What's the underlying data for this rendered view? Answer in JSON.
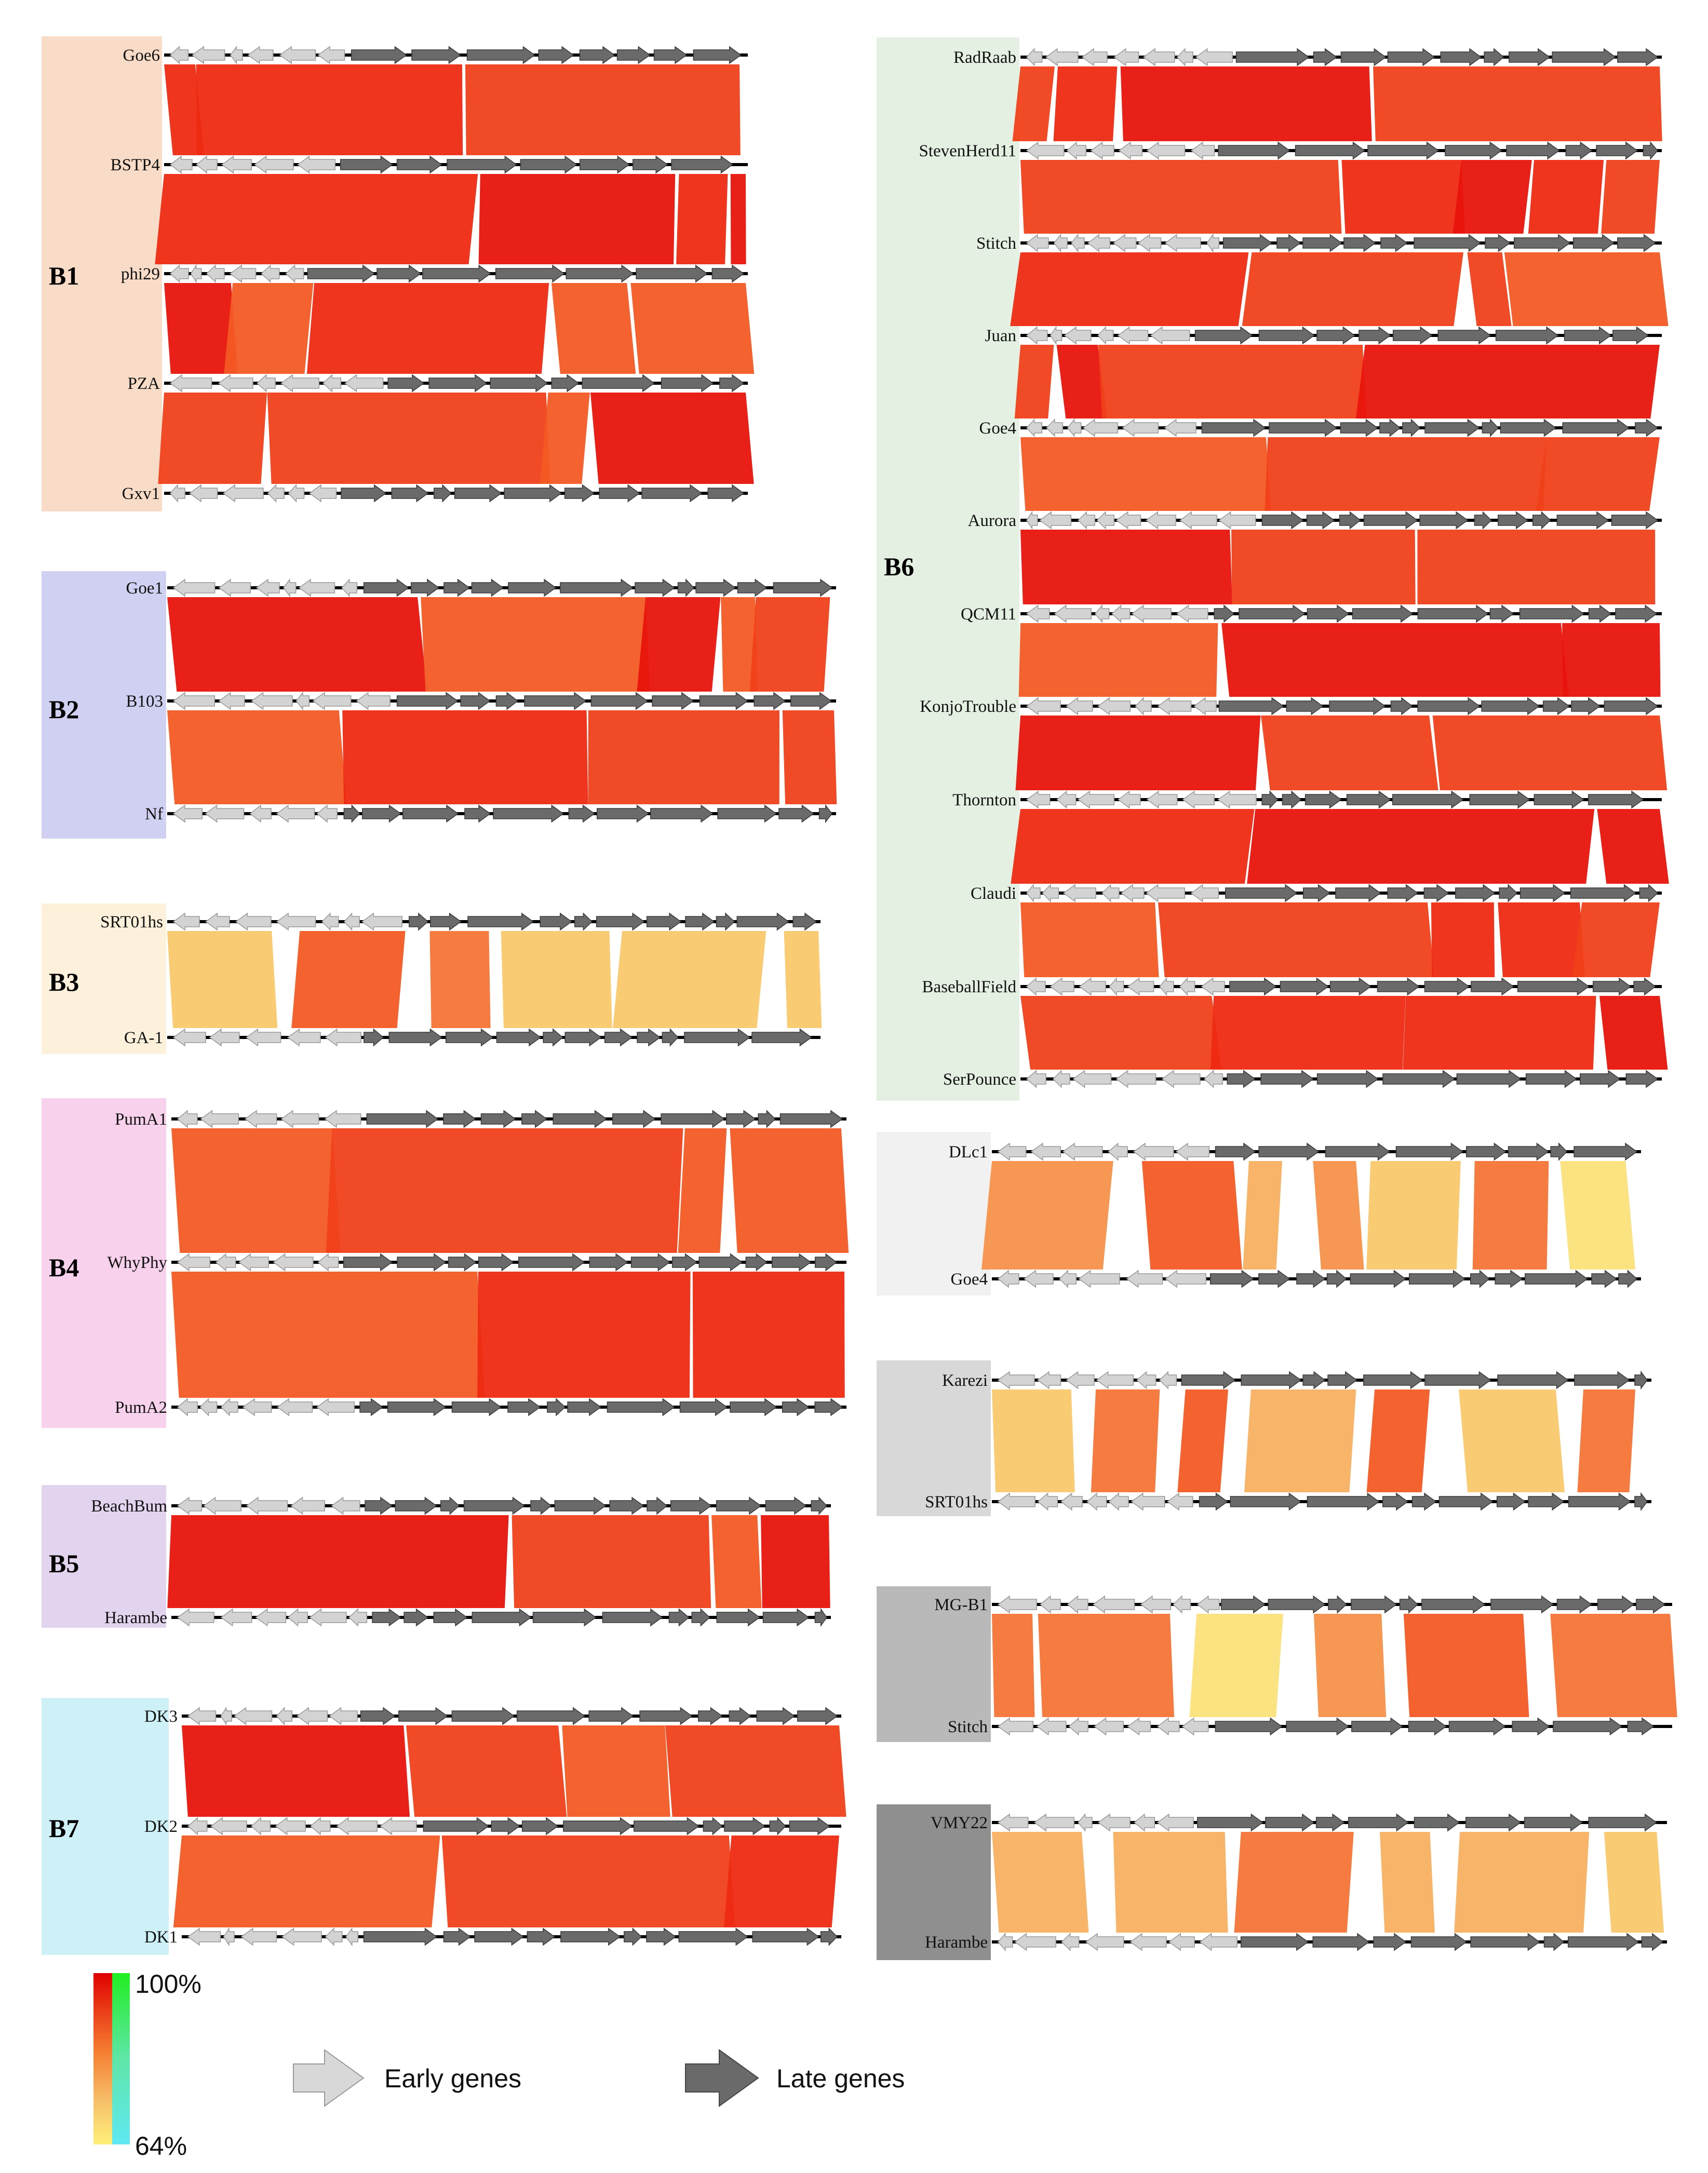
{
  "groups": [
    {
      "label": "B1",
      "color": "#f8dcc8",
      "genomes": [
        "Goe6",
        "BSTP4",
        "phi29",
        "PZA",
        "Gxv1"
      ]
    },
    {
      "label": "B2",
      "color": "#cfd0f2",
      "genomes": [
        "Goe1",
        "B103",
        "Nf"
      ]
    },
    {
      "label": "B3",
      "color": "#fdf1dc",
      "genomes": [
        "SRT01hs",
        "GA-1"
      ]
    },
    {
      "label": "B4",
      "color": "#f8d2ec",
      "genomes": [
        "PumA1",
        "WhyPhy",
        "PumA2"
      ]
    },
    {
      "label": "B5",
      "color": "#e2d3ee",
      "genomes": [
        "BeachBum",
        "Harambe"
      ]
    },
    {
      "label": "B6",
      "color": "#e4f0e1",
      "genomes": [
        "RadRaab",
        "StevenHerd11",
        "Stitch",
        "Juan",
        "Goe4",
        "Aurora",
        "QCM11",
        "KonjoTrouble",
        "Thornton",
        "Claudi",
        "BaseballField",
        "SerPounce"
      ]
    },
    {
      "label": "B7",
      "color": "#cdf1f6",
      "genomes": [
        "DK3",
        "DK2",
        "DK1"
      ]
    }
  ],
  "pairs": [
    {
      "label": "",
      "color": "#f1f1f1",
      "genomes": [
        "DLc1",
        "Goe4"
      ]
    },
    {
      "label": "",
      "color": "#d8d8d8",
      "genomes": [
        "Karezi",
        "SRT01hs"
      ]
    },
    {
      "label": "",
      "color": "#b9b9b9",
      "genomes": [
        "MG-B1",
        "Stitch"
      ]
    },
    {
      "label": "",
      "color": "#8f8f8f",
      "genomes": [
        "VMY22",
        "Harambe"
      ]
    }
  ],
  "legend": {
    "identity_max": "100%",
    "identity_min": "64%",
    "early_label": "Early genes",
    "late_label": "Late genes",
    "early_color": "#d3d3d3",
    "late_color": "#6a6a6a"
  }
}
